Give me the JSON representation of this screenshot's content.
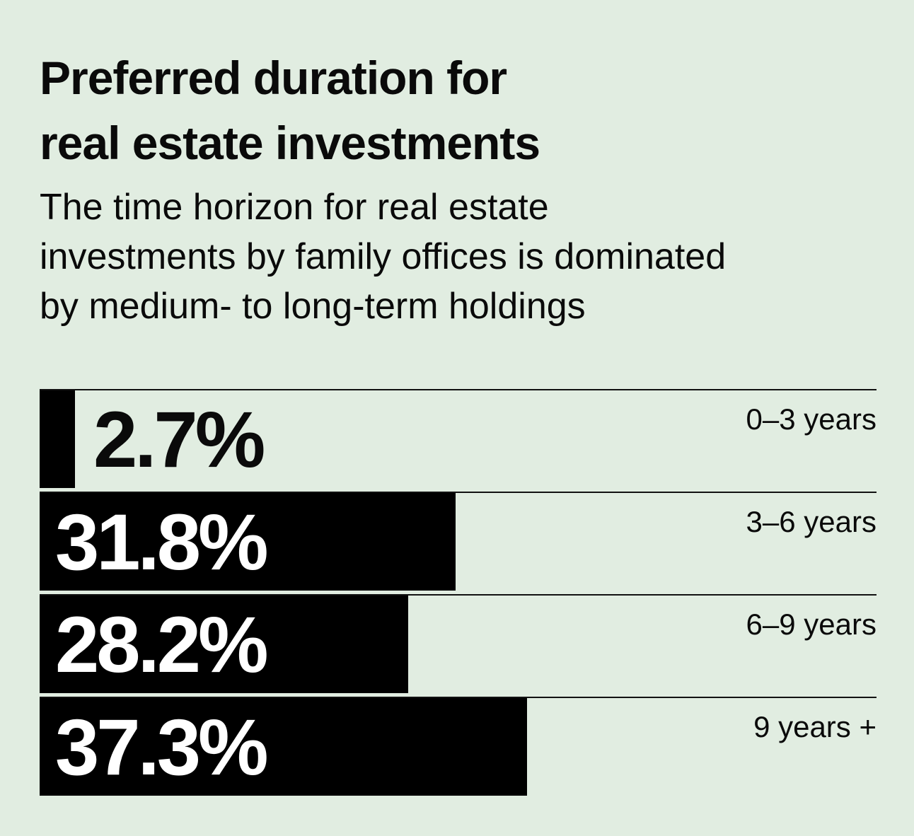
{
  "header": {
    "title_line1": "Preferred duration for",
    "title_line2": "real estate investments",
    "subtitle_line1": "The time horizon for real estate",
    "subtitle_line2": "investments by family offices is dominated",
    "subtitle_line3": "by medium- to long-term holdings"
  },
  "colors": {
    "background": "#e1ede1",
    "bar": "#000000",
    "text": "#0a0a0a",
    "label_on_bar": "#ffffff"
  },
  "chart_data": {
    "type": "bar",
    "orientation": "horizontal",
    "title": "Preferred duration for real estate investments",
    "subtitle": "The time horizon for real estate investments by family offices is dominated by medium- to long-term holdings",
    "categories": [
      "0–3 years",
      "3–6 years",
      "6–9 years",
      "9 years +"
    ],
    "values": [
      2.7,
      31.8,
      28.2,
      37.3
    ],
    "value_labels": [
      "2.7%",
      "31.8%",
      "28.2%",
      "37.3%"
    ],
    "unit": "%",
    "xlim": [
      0,
      64
    ],
    "grid": false,
    "legend": "none"
  }
}
